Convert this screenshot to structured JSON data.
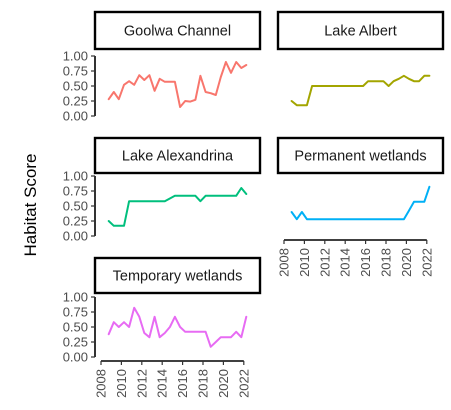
{
  "chart_data": {
    "type": "line",
    "title": "",
    "ylabel": "Habitat Score",
    "xlabel": "",
    "legend": "none",
    "grid": false,
    "x_range": [
      2008,
      2023
    ],
    "y_range": [
      0,
      1
    ],
    "x_ticks": [
      "2008",
      "2010",
      "2012",
      "2014",
      "2016",
      "2018",
      "2020",
      "2022"
    ],
    "y_ticks": [
      "0.00",
      "0.25",
      "0.50",
      "0.75",
      "1.00"
    ],
    "panels": [
      {
        "name": "Goolwa Channel",
        "color": "#F8766D",
        "x": [
          2008.75,
          2009.25,
          2009.75,
          2010.25,
          2010.75,
          2011.25,
          2011.75,
          2012.25,
          2012.75,
          2013.25,
          2013.75,
          2014.25,
          2014.75,
          2015.25,
          2015.75,
          2016.25,
          2016.75,
          2017.25,
          2017.75,
          2018.25,
          2018.75,
          2019.25,
          2019.75,
          2020.25,
          2020.75,
          2021.25,
          2021.75,
          2022.25
        ],
        "y": [
          0.28,
          0.4,
          0.28,
          0.52,
          0.58,
          0.52,
          0.68,
          0.6,
          0.68,
          0.42,
          0.62,
          0.57,
          0.57,
          0.57,
          0.15,
          0.25,
          0.24,
          0.27,
          0.67,
          0.4,
          0.38,
          0.35,
          0.65,
          0.9,
          0.72,
          0.9,
          0.8,
          0.85
        ]
      },
      {
        "name": "Lake Albert",
        "color": "#A3A500",
        "x": [
          2008.75,
          2009.25,
          2010.25,
          2010.75,
          2011.25,
          2012.25,
          2013.25,
          2014.25,
          2015.25,
          2015.75,
          2016.25,
          2016.75,
          2017.25,
          2017.75,
          2018.25,
          2018.75,
          2019.25,
          2019.75,
          2020.25,
          2020.75,
          2021.25,
          2021.75,
          2022.25
        ],
        "y": [
          0.25,
          0.18,
          0.18,
          0.5,
          0.5,
          0.5,
          0.5,
          0.5,
          0.5,
          0.5,
          0.58,
          0.58,
          0.58,
          0.58,
          0.5,
          0.58,
          0.62,
          0.67,
          0.62,
          0.58,
          0.58,
          0.67,
          0.67
        ]
      },
      {
        "name": "Lake Alexandrina",
        "color": "#00BF7D",
        "x": [
          2008.75,
          2009.25,
          2010.25,
          2010.75,
          2011.25,
          2012.25,
          2013.25,
          2014.25,
          2015.25,
          2015.75,
          2016.25,
          2016.75,
          2017.25,
          2017.75,
          2018.25,
          2018.75,
          2019.25,
          2019.75,
          2020.25,
          2020.75,
          2021.25,
          2021.75,
          2022.25
        ],
        "y": [
          0.25,
          0.17,
          0.17,
          0.58,
          0.58,
          0.58,
          0.58,
          0.58,
          0.67,
          0.67,
          0.67,
          0.67,
          0.67,
          0.58,
          0.67,
          0.67,
          0.67,
          0.67,
          0.67,
          0.67,
          0.67,
          0.8,
          0.7
        ]
      },
      {
        "name": "Permanent wetlands",
        "color": "#00B0F6",
        "x": [
          2008.75,
          2009.25,
          2009.75,
          2010.25,
          2010.75,
          2011.25,
          2012.25,
          2013.25,
          2014.25,
          2015.25,
          2016.25,
          2017.25,
          2018.25,
          2019.25,
          2019.75,
          2020.25,
          2020.75,
          2021.25,
          2021.75,
          2022.25
        ],
        "y": [
          0.4,
          0.28,
          0.4,
          0.28,
          0.28,
          0.28,
          0.28,
          0.28,
          0.28,
          0.28,
          0.28,
          0.28,
          0.28,
          0.28,
          0.28,
          0.42,
          0.57,
          0.57,
          0.57,
          0.82
        ]
      },
      {
        "name": "Temporary wetlands",
        "color": "#E76BF3",
        "x": [
          2008.75,
          2009.25,
          2009.75,
          2010.25,
          2010.75,
          2011.25,
          2011.75,
          2012.25,
          2012.75,
          2013.25,
          2013.75,
          2014.25,
          2014.75,
          2015.25,
          2015.75,
          2016.25,
          2016.75,
          2017.25,
          2017.75,
          2018.25,
          2018.75,
          2019.25,
          2019.75,
          2020.25,
          2020.75,
          2021.25,
          2021.75,
          2022.25
        ],
        "y": [
          0.38,
          0.58,
          0.5,
          0.58,
          0.5,
          0.82,
          0.67,
          0.4,
          0.33,
          0.67,
          0.33,
          0.4,
          0.5,
          0.67,
          0.5,
          0.42,
          0.42,
          0.42,
          0.42,
          0.42,
          0.17,
          0.25,
          0.33,
          0.33,
          0.33,
          0.42,
          0.33,
          0.67
        ]
      }
    ]
  }
}
